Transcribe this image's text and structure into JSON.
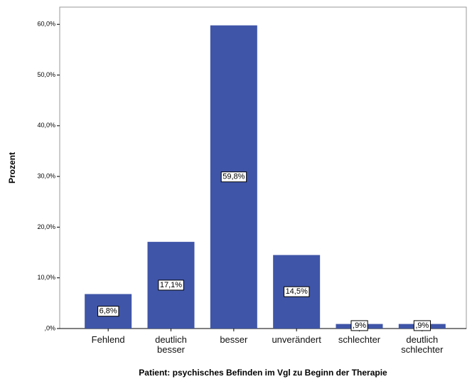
{
  "chart_data": {
    "type": "bar",
    "x_label": "Patient: psychisches Befinden im Vgl zu Beginn der Therapie",
    "y_label": "Prozent",
    "categories": [
      "Fehlend",
      "deutlich besser",
      "besser",
      "unverändert",
      "schlechter",
      "deutlich schlechter"
    ],
    "values": [
      6.8,
      17.1,
      59.8,
      14.5,
      0.9,
      0.9
    ],
    "value_labels": [
      "6,8%",
      "17,1%",
      "59,8%",
      "14,5%",
      ",9%",
      ",9%"
    ],
    "color": "#3f55a8",
    "ylim": [
      0,
      63.4
    ],
    "yticks": [
      {
        "value": 0,
        "label": ",0%"
      },
      {
        "value": 10,
        "label": "10,0%"
      },
      {
        "value": 20,
        "label": "20,0%"
      },
      {
        "value": 30,
        "label": "30,0%"
      },
      {
        "value": 40,
        "label": "40,0%"
      },
      {
        "value": 50,
        "label": "50,0%"
      },
      {
        "value": 60,
        "label": "60,0%"
      }
    ],
    "grid": false
  }
}
